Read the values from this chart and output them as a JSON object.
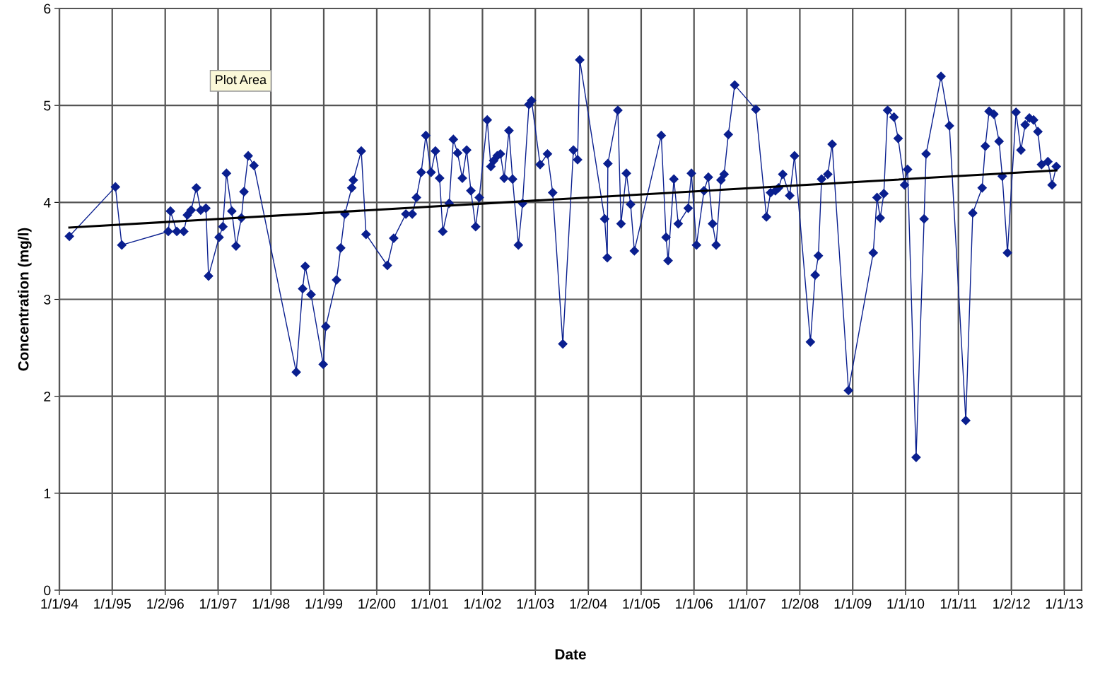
{
  "chart_data": {
    "type": "line",
    "xlabel": "Date",
    "ylabel": "Concentration (mg/l)",
    "xlim": [
      "1994-01-01",
      "2013-05-01"
    ],
    "ylim": [
      0,
      6
    ],
    "xticks": [
      {
        "value": "1994-01-01",
        "label": "1/1/94"
      },
      {
        "value": "1995-01-01",
        "label": "1/1/95"
      },
      {
        "value": "1996-01-02",
        "label": "1/2/96"
      },
      {
        "value": "1997-01-01",
        "label": "1/1/97"
      },
      {
        "value": "1998-01-01",
        "label": "1/1/98"
      },
      {
        "value": "1999-01-01",
        "label": "1/1/99"
      },
      {
        "value": "2000-01-02",
        "label": "1/2/00"
      },
      {
        "value": "2001-01-01",
        "label": "1/1/01"
      },
      {
        "value": "2002-01-01",
        "label": "1/1/02"
      },
      {
        "value": "2003-01-01",
        "label": "1/1/03"
      },
      {
        "value": "2004-01-02",
        "label": "1/2/04"
      },
      {
        "value": "2005-01-01",
        "label": "1/1/05"
      },
      {
        "value": "2006-01-01",
        "label": "1/1/06"
      },
      {
        "value": "2007-01-01",
        "label": "1/1/07"
      },
      {
        "value": "2008-01-02",
        "label": "1/2/08"
      },
      {
        "value": "2009-01-01",
        "label": "1/1/09"
      },
      {
        "value": "2010-01-01",
        "label": "1/1/10"
      },
      {
        "value": "2011-01-01",
        "label": "1/1/11"
      },
      {
        "value": "2012-01-02",
        "label": "1/2/12"
      },
      {
        "value": "2013-01-01",
        "label": "1/1/13"
      }
    ],
    "yticks": [
      0,
      1,
      2,
      3,
      4,
      5,
      6
    ],
    "grid": true,
    "legend": false,
    "annotations": [
      "Plot Area"
    ],
    "series": [
      {
        "color": "#0a1f8f",
        "marker": "diamond",
        "line_style": "solid",
        "x": [
          "1994-03-11",
          "1995-01-23",
          "1995-03-08",
          "1996-01-23",
          "1996-02-07",
          "1996-03-22",
          "1996-05-09",
          "1996-06-03",
          "1996-06-29",
          "1996-08-04",
          "1996-09-03",
          "1996-10-09",
          "1996-10-27",
          "1997-01-08",
          "1997-02-03",
          "1997-02-28",
          "1997-04-06",
          "1997-05-05",
          "1997-06-11",
          "1997-06-29",
          "1997-07-28",
          "1997-09-06",
          "1998-06-25",
          "1998-08-08",
          "1998-08-26",
          "1998-10-05",
          "1998-12-28",
          "1999-01-15",
          "1999-03-30",
          "1999-04-28",
          "1999-05-27",
          "1999-07-13",
          "1999-07-24",
          "1999-09-17",
          "1999-10-20",
          "2000-03-15",
          "2000-04-28",
          "2000-07-21",
          "2000-09-03",
          "2000-10-02",
          "2000-11-04",
          "2000-12-06",
          "2001-01-11",
          "2001-02-10",
          "2001-03-11",
          "2001-04-02",
          "2001-05-16",
          "2001-06-14",
          "2001-07-13",
          "2001-08-15",
          "2001-09-14",
          "2001-10-13",
          "2001-11-15",
          "2001-12-10",
          "2002-02-03",
          "2002-02-28",
          "2002-03-19",
          "2002-04-13",
          "2002-05-05",
          "2002-05-31",
          "2002-07-03",
          "2002-07-28",
          "2002-09-06",
          "2002-10-05",
          "2002-11-18",
          "2002-12-06",
          "2003-02-03",
          "2003-03-26",
          "2003-05-01",
          "2003-07-10",
          "2003-09-21",
          "2003-10-20",
          "2003-11-04",
          "2004-04-24",
          "2004-05-12",
          "2004-05-16",
          "2004-07-24",
          "2004-08-15",
          "2004-09-21",
          "2004-10-20",
          "2004-11-15",
          "2005-05-20",
          "2005-06-22",
          "2005-07-06",
          "2005-08-15",
          "2005-09-14",
          "2005-11-22",
          "2005-12-14",
          "2006-01-18",
          "2006-03-11",
          "2006-04-10",
          "2006-05-09",
          "2006-06-03",
          "2006-07-06",
          "2006-07-28",
          "2006-08-26",
          "2006-10-09",
          "2007-03-04",
          "2007-05-16",
          "2007-06-14",
          "2007-07-17",
          "2007-08-08",
          "2007-09-06",
          "2007-10-24",
          "2007-11-26",
          "2008-03-15",
          "2008-04-17",
          "2008-05-09",
          "2008-05-31",
          "2008-07-13",
          "2008-08-12",
          "2008-12-03",
          "2009-05-23",
          "2009-06-18",
          "2009-07-10",
          "2009-08-04",
          "2009-08-30",
          "2009-10-13",
          "2009-11-11",
          "2009-12-25",
          "2010-01-15",
          "2010-03-15",
          "2010-05-09",
          "2010-05-23",
          "2010-09-03",
          "2010-10-31",
          "2011-02-21",
          "2011-04-10",
          "2011-06-14",
          "2011-07-06",
          "2011-08-01",
          "2011-09-03",
          "2011-10-09",
          "2011-10-31",
          "2011-12-06",
          "2012-02-03",
          "2012-03-08",
          "2012-04-06",
          "2012-05-05",
          "2012-06-03",
          "2012-07-03",
          "2012-07-28",
          "2012-09-10",
          "2012-10-09",
          "2012-11-07"
        ],
        "values": [
          3.65,
          4.16,
          3.56,
          3.7,
          3.91,
          3.7,
          3.7,
          3.87,
          3.92,
          4.15,
          3.92,
          3.94,
          3.24,
          3.64,
          3.75,
          4.3,
          3.91,
          3.55,
          3.84,
          4.11,
          4.48,
          4.38,
          2.25,
          3.11,
          3.34,
          3.05,
          2.33,
          2.72,
          3.2,
          3.53,
          3.88,
          4.15,
          4.23,
          4.53,
          3.67,
          3.35,
          3.63,
          3.88,
          3.88,
          4.05,
          4.31,
          4.69,
          4.31,
          4.53,
          4.25,
          3.7,
          3.99,
          4.65,
          4.51,
          4.25,
          4.54,
          4.12,
          3.75,
          4.05,
          4.85,
          4.37,
          4.43,
          4.48,
          4.5,
          4.25,
          4.74,
          4.24,
          3.56,
          3.99,
          5.01,
          5.05,
          4.39,
          4.5,
          4.1,
          2.54,
          4.54,
          4.44,
          5.47,
          3.83,
          3.43,
          4.4,
          4.95,
          3.78,
          4.3,
          3.98,
          3.5,
          4.69,
          3.64,
          3.4,
          4.24,
          3.78,
          3.94,
          4.3,
          3.56,
          4.12,
          4.26,
          3.78,
          3.56,
          4.23,
          4.29,
          4.7,
          5.21,
          4.96,
          3.85,
          4.1,
          4.12,
          4.15,
          4.29,
          4.07,
          4.48,
          2.56,
          3.25,
          3.45,
          4.24,
          4.29,
          4.6,
          2.06,
          3.48,
          4.05,
          3.84,
          4.09,
          4.95,
          4.88,
          4.66,
          4.18,
          4.34,
          1.37,
          3.83,
          4.5,
          5.3,
          4.79,
          1.75,
          3.89,
          4.15,
          4.58,
          4.94,
          4.91,
          4.63,
          4.27,
          3.48,
          4.93,
          4.54,
          4.8,
          4.87,
          4.85,
          4.73,
          4.39,
          4.42,
          4.18,
          4.37
        ]
      },
      {
        "color": "#000000",
        "marker": "none",
        "line_style": "solid",
        "x": [
          "1994-03-11",
          "2012-11-07"
        ],
        "values": [
          3.74,
          4.33
        ]
      }
    ]
  }
}
